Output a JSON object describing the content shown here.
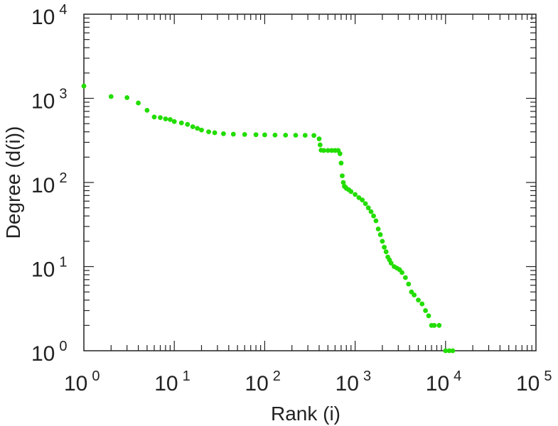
{
  "chart_data": {
    "type": "scatter",
    "title": "",
    "xlabel": "Rank (i)",
    "ylabel": "Degree (d(i))",
    "xscale": "log",
    "yscale": "log",
    "xlim": [
      1,
      100000
    ],
    "ylim": [
      1,
      10000
    ],
    "x_ticks": [
      {
        "base": "10",
        "exp": "0",
        "value": 1
      },
      {
        "base": "10",
        "exp": "1",
        "value": 10
      },
      {
        "base": "10",
        "exp": "2",
        "value": 100
      },
      {
        "base": "10",
        "exp": "3",
        "value": 1000
      },
      {
        "base": "10",
        "exp": "4",
        "value": 10000
      },
      {
        "base": "10",
        "exp": "5",
        "value": 100000
      }
    ],
    "y_ticks": [
      {
        "base": "10",
        "exp": "0",
        "value": 1
      },
      {
        "base": "10",
        "exp": "1",
        "value": 10
      },
      {
        "base": "10",
        "exp": "2",
        "value": 100
      },
      {
        "base": "10",
        "exp": "3",
        "value": 1000
      },
      {
        "base": "10",
        "exp": "4",
        "value": 10000
      }
    ],
    "grid": false,
    "legend": "none",
    "marker_color": "#22dd00",
    "series": [
      {
        "x": [
          1,
          2,
          3,
          4,
          5,
          6,
          7,
          8,
          9,
          10,
          12,
          14,
          16,
          18,
          20,
          24,
          28,
          35,
          45,
          60,
          80,
          100,
          130,
          170,
          220,
          280,
          350,
          400,
          410,
          420,
          450,
          500,
          550,
          600,
          650,
          680,
          700,
          720,
          740,
          760,
          780,
          800,
          850,
          900,
          1000,
          1100,
          1200,
          1300,
          1400,
          1500,
          1600,
          1700,
          1800,
          1900,
          2000,
          2100,
          2200,
          2300,
          2400,
          2500,
          2700,
          2900,
          3100,
          3300,
          3600,
          3900,
          4200,
          4500,
          5000,
          5500,
          6000,
          6500,
          7000,
          7500,
          8500,
          10000,
          11000,
          12000
        ],
        "y": [
          1400,
          1050,
          1020,
          880,
          720,
          600,
          590,
          570,
          560,
          530,
          510,
          490,
          460,
          440,
          420,
          400,
          390,
          380,
          375,
          372,
          370,
          368,
          366,
          365,
          364,
          363,
          362,
          330,
          280,
          242,
          240,
          240,
          240,
          240,
          240,
          220,
          170,
          120,
          100,
          90,
          88,
          85,
          82,
          78,
          72,
          66,
          62,
          56,
          50,
          45,
          40,
          35,
          28,
          24,
          20,
          17,
          15,
          13,
          12,
          11,
          10,
          9.6,
          9.2,
          8.5,
          7.4,
          6.2,
          5,
          4.6,
          4,
          3.6,
          3,
          2.6,
          2,
          2,
          2,
          1,
          1,
          1
        ]
      }
    ]
  }
}
